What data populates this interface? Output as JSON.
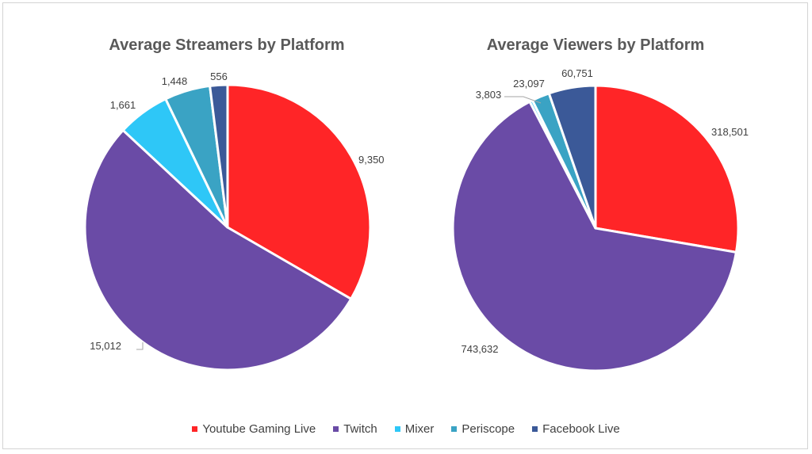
{
  "chart_data": [
    {
      "type": "pie",
      "title": "Average Streamers by Platform",
      "categories": [
        "Youtube Gaming Live",
        "Twitch",
        "Mixer",
        "Periscope",
        "Facebook Live"
      ],
      "values": [
        9350,
        15012,
        1661,
        1448,
        556
      ],
      "data_labels": [
        "9,350",
        "15,012",
        "1,661",
        "1,448",
        "556"
      ],
      "start_angle_deg": 0,
      "direction": "clockwise"
    },
    {
      "type": "pie",
      "title": "Average Viewers by Platform",
      "categories": [
        "Youtube Gaming Live",
        "Twitch",
        "Mixer",
        "Periscope",
        "Facebook Live"
      ],
      "values": [
        318501,
        743632,
        3803,
        23097,
        60751
      ],
      "data_labels": [
        "318,501",
        "743,632",
        "3,803",
        "23,097",
        "60,751"
      ],
      "start_angle_deg": 0,
      "direction": "clockwise"
    }
  ],
  "legend": {
    "position": "bottom",
    "items": [
      {
        "label": "Youtube Gaming Live",
        "color": "#ff2527"
      },
      {
        "label": "Twitch",
        "color": "#6a4ba6"
      },
      {
        "label": "Mixer",
        "color": "#2ec7f7"
      },
      {
        "label": "Periscope",
        "color": "#3aa3c4"
      },
      {
        "label": "Facebook Live",
        "color": "#3b5998"
      }
    ]
  },
  "colors": [
    "#ff2527",
    "#6a4ba6",
    "#2ec7f7",
    "#3aa3c4",
    "#3b5998"
  ]
}
